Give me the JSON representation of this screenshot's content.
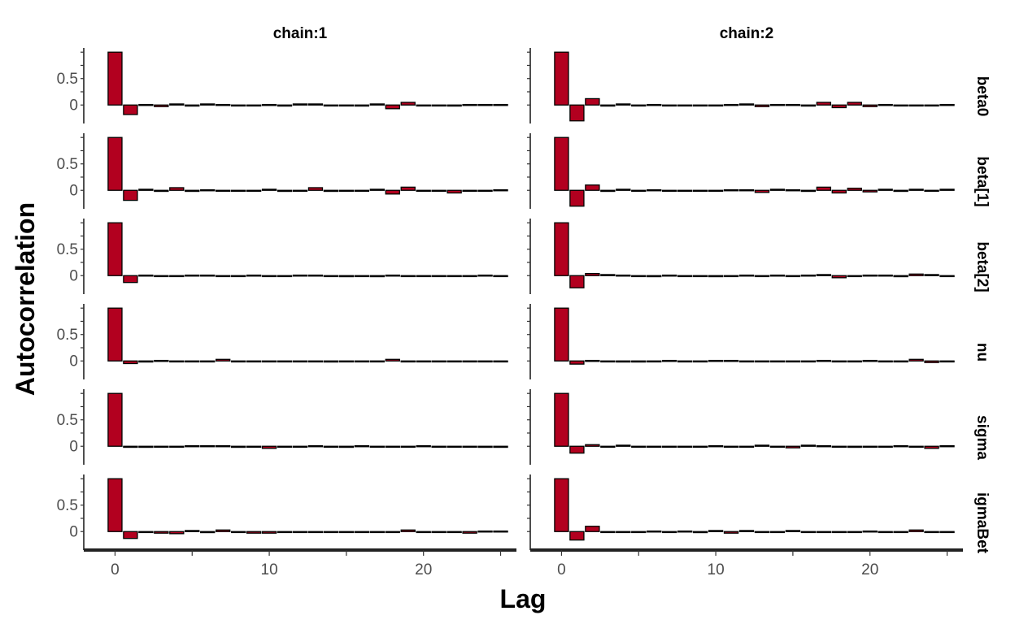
{
  "chart_data": {
    "type": "bar",
    "xlabel": "Lag",
    "ylabel": "Autocorrelation",
    "xlim": [
      -1.5,
      25.5
    ],
    "ylim": [
      -0.35,
      1.08
    ],
    "x_ticks": [
      0,
      10,
      20
    ],
    "y_ticks": [
      0,
      0.5
    ],
    "y_tick_labels": [
      "0",
      "0.5"
    ],
    "lags": [
      0,
      1,
      2,
      3,
      4,
      5,
      6,
      7,
      8,
      9,
      10,
      11,
      12,
      13,
      14,
      15,
      16,
      17,
      18,
      19,
      20,
      21,
      22,
      23,
      24,
      25
    ],
    "bar_fill": "#b2001f",
    "bar_outline": "#000000",
    "columns": [
      "chain:1",
      "chain:2"
    ],
    "rows": [
      "beta0",
      "beta[1]",
      "beta[2]",
      "nu",
      "sigma",
      "igmaBet"
    ],
    "panels": [
      {
        "chain": "chain:1",
        "parameter": "beta0",
        "values": [
          1,
          -0.18,
          0.01,
          -0.03,
          0.02,
          -0.02,
          0.02,
          0.01,
          0.0,
          0.0,
          0.01,
          -0.02,
          0.02,
          0.02,
          -0.01,
          0.0,
          -0.02,
          0.02,
          -0.07,
          0.05,
          -0.01,
          0.0,
          -0.02,
          0.01,
          0.01,
          0.01
        ]
      },
      {
        "chain": "chain:2",
        "parameter": "beta0",
        "values": [
          1,
          -0.3,
          0.12,
          -0.02,
          0.02,
          -0.01,
          0.01,
          0.0,
          0.0,
          0.0,
          0.0,
          0.01,
          0.02,
          -0.03,
          0.01,
          0.01,
          -0.02,
          0.05,
          -0.05,
          0.05,
          -0.03,
          0.01,
          0.0,
          -0.01,
          0.0,
          0.01
        ]
      },
      {
        "chain": "chain:1",
        "parameter": "beta[1]",
        "values": [
          1,
          -0.19,
          0.02,
          -0.02,
          0.05,
          -0.02,
          0.01,
          0.0,
          0.0,
          0.0,
          0.02,
          -0.02,
          0.0,
          0.05,
          -0.02,
          0.0,
          -0.01,
          0.02,
          -0.07,
          0.06,
          -0.01,
          0.0,
          -0.05,
          0.0,
          0.0,
          0.01
        ]
      },
      {
        "chain": "chain:2",
        "parameter": "beta[1]",
        "values": [
          1,
          -0.3,
          0.1,
          -0.02,
          0.02,
          -0.01,
          0.01,
          0.0,
          0.0,
          -0.01,
          0.0,
          0.01,
          0.01,
          -0.04,
          0.02,
          0.01,
          -0.02,
          0.06,
          -0.05,
          0.04,
          -0.03,
          0.02,
          -0.02,
          0.02,
          -0.01,
          0.02
        ]
      },
      {
        "chain": "chain:1",
        "parameter": "beta[2]",
        "values": [
          1,
          -0.13,
          0.01,
          0.0,
          0.0,
          0.01,
          0.01,
          -0.01,
          0.0,
          0.01,
          -0.01,
          0.0,
          0.01,
          0.01,
          0.0,
          -0.02,
          0.0,
          -0.02,
          0.01,
          0.0,
          0.0,
          0.0,
          0.0,
          -0.01,
          0.01,
          0.0
        ]
      },
      {
        "chain": "chain:2",
        "parameter": "beta[2]",
        "values": [
          1,
          -0.23,
          0.04,
          0.02,
          0.01,
          0.0,
          -0.02,
          0.01,
          0.0,
          0.0,
          -0.02,
          0.0,
          0.01,
          0.0,
          0.01,
          0.0,
          0.01,
          0.02,
          -0.04,
          0.0,
          0.01,
          0.01,
          -0.02,
          0.03,
          0.02,
          -0.01
        ]
      },
      {
        "chain": "chain:1",
        "parameter": "nu",
        "values": [
          1,
          -0.05,
          -0.02,
          0.01,
          0.0,
          -0.01,
          -0.01,
          0.03,
          0.0,
          0.0,
          -0.01,
          -0.01,
          0.0,
          -0.01,
          -0.02,
          -0.01,
          -0.01,
          0.0,
          0.03,
          0.0,
          0.0,
          0.0,
          0.0,
          -0.01,
          0.0,
          0.0
        ]
      },
      {
        "chain": "chain:2",
        "parameter": "nu",
        "values": [
          1,
          -0.06,
          0.01,
          0.0,
          -0.02,
          -0.02,
          0.0,
          0.01,
          -0.01,
          0.0,
          0.01,
          0.01,
          0.0,
          0.0,
          -0.01,
          -0.01,
          0.0,
          0.01,
          0.0,
          0.0,
          0.01,
          0.0,
          0.0,
          0.03,
          -0.03,
          0.0
        ]
      },
      {
        "chain": "chain:1",
        "parameter": "sigma",
        "values": [
          1,
          -0.02,
          -0.02,
          0.0,
          0.0,
          0.01,
          0.01,
          0.01,
          -0.02,
          0.0,
          -0.04,
          0.0,
          0.0,
          0.01,
          0.0,
          -0.02,
          0.01,
          0.0,
          0.0,
          0.0,
          0.01,
          0.0,
          -0.01,
          -0.01,
          -0.02,
          -0.02
        ]
      },
      {
        "chain": "chain:2",
        "parameter": "sigma",
        "values": [
          1,
          -0.13,
          0.03,
          0.0,
          0.02,
          -0.01,
          0.0,
          0.0,
          -0.01,
          0.0,
          0.01,
          0.0,
          0.0,
          0.02,
          0.0,
          -0.03,
          0.02,
          0.01,
          0.0,
          -0.02,
          0.0,
          0.0,
          0.01,
          0.0,
          -0.04,
          0.01
        ]
      },
      {
        "chain": "chain:1",
        "parameter": "igmaBet",
        "values": [
          1,
          -0.13,
          0.0,
          -0.03,
          -0.04,
          0.02,
          -0.02,
          0.03,
          0.0,
          -0.03,
          -0.03,
          0.0,
          0.0,
          0.0,
          0.0,
          -0.01,
          -0.01,
          -0.01,
          0.0,
          0.03,
          -0.01,
          -0.01,
          0.0,
          -0.03,
          0.01,
          0.01
        ]
      },
      {
        "chain": "chain:2",
        "parameter": "igmaBet",
        "values": [
          1,
          -0.16,
          0.1,
          -0.01,
          0.0,
          0.0,
          0.01,
          0.0,
          0.01,
          -0.02,
          0.02,
          -0.03,
          0.02,
          0.0,
          -0.01,
          0.02,
          0.0,
          0.0,
          0.0,
          0.0,
          0.01,
          0.0,
          0.0,
          0.03,
          0.0,
          -0.01
        ]
      }
    ]
  }
}
